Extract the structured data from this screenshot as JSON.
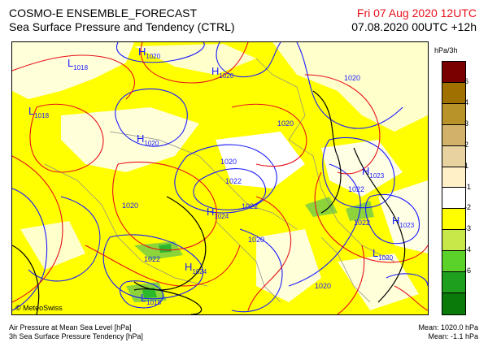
{
  "header": {
    "title_line1": "COSMO-E ENSEMBLE_FORECAST",
    "title_line2": "Sea Surface Pressure and Tendency (CTRL)",
    "valid_time": "Fri 07 Aug 2020 12UTC",
    "run_time": "07.08.2020 00UTC +12h"
  },
  "map": {
    "copyright": "© MeteoSwiss",
    "pressure_centers": [
      {
        "type": "L",
        "value": "1018"
      },
      {
        "type": "H",
        "value": "1020"
      },
      {
        "type": "H",
        "value": "1020"
      },
      {
        "type": "L",
        "value": "1018"
      },
      {
        "type": "H",
        "value": "1020"
      },
      {
        "type": "H",
        "value": "1024"
      },
      {
        "type": "H",
        "value": "1023"
      },
      {
        "type": "H",
        "value": "1023"
      },
      {
        "type": "L",
        "value": "1020"
      },
      {
        "type": "H",
        "value": "1024"
      },
      {
        "type": "L",
        "value": "1018"
      }
    ],
    "isobar_labels": [
      "1020",
      "1020",
      "1020",
      "1022",
      "1022",
      "1020",
      "1022",
      "1022",
      "1020",
      "1022",
      "1020"
    ]
  },
  "legend": {
    "unit": "hPa/3h",
    "ticks": [
      "6",
      "4",
      "3",
      "2",
      "1",
      "-1",
      "-2",
      "-3",
      "-4",
      "-6"
    ],
    "colors": [
      "#7a0000",
      "#a07000",
      "#b8932a",
      "#d2b26a",
      "#e8d3a0",
      "#fff0c8",
      "#ffffff",
      "#ffff00",
      "#c8e84a",
      "#5ad22a",
      "#1ea01e",
      "#0a7a0a"
    ]
  },
  "footer": {
    "left_line1": "Air Pressure at Mean Sea Level [hPa]",
    "left_line2": "3h Sea Surface Pressure Tendency [hPa]",
    "mean_pressure": "Mean: 1020.0 hPa",
    "mean_tendency": "Mean:  -1.1 hPa"
  }
}
